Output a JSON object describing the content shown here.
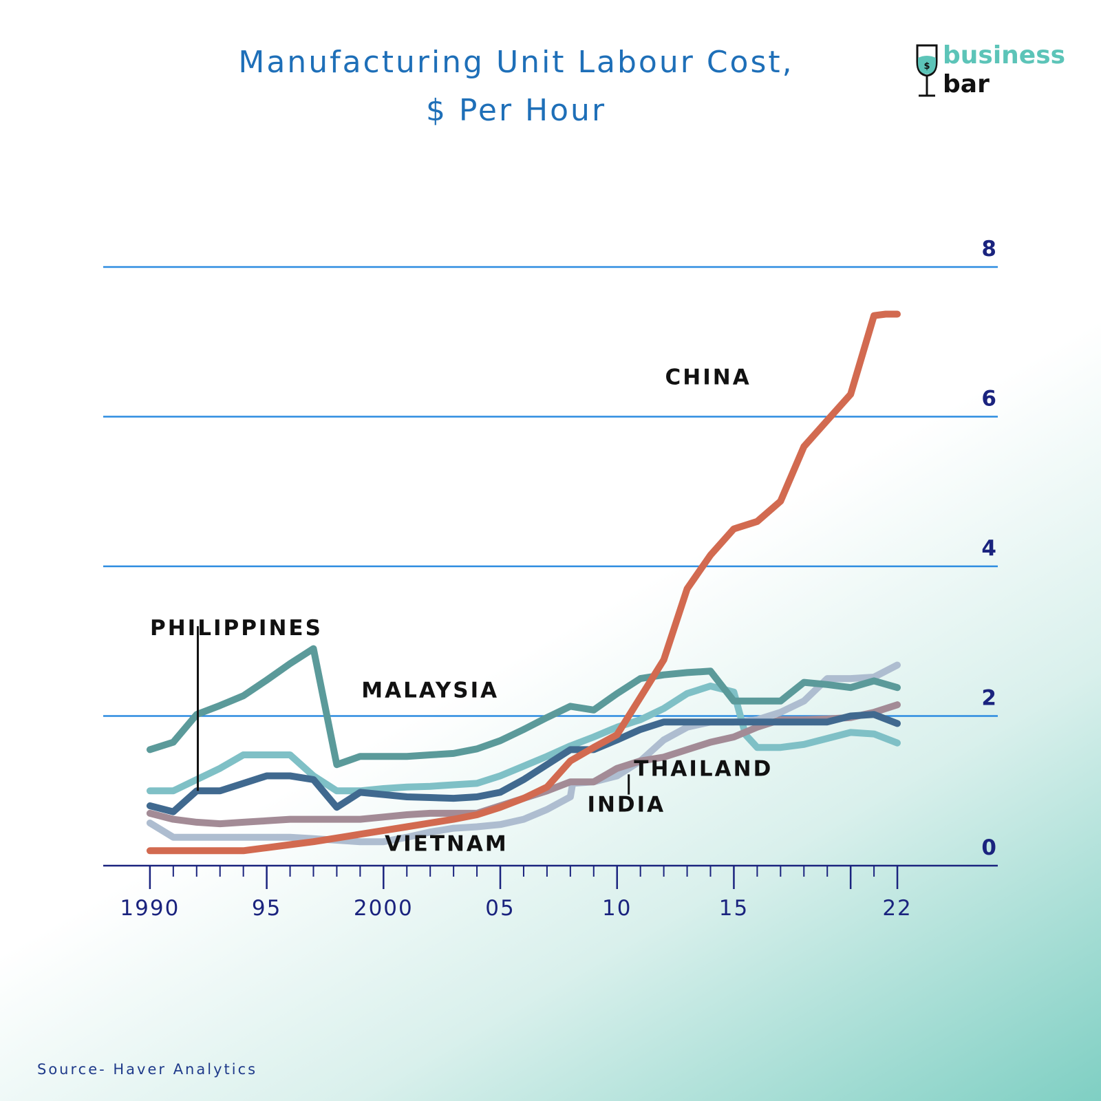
{
  "title": {
    "line1": "Manufacturing Unit Labour Cost,",
    "line2": "$ Per Hour"
  },
  "logo": {
    "top_text": "business",
    "bottom_text": "bar",
    "glass_symbol": "$",
    "icon": "wine-glass-icon"
  },
  "source": "Source- Haver Analytics",
  "colors": {
    "gridline": "#2b8be0",
    "axis": "#1a237e",
    "title": "#1e6fb8",
    "logo_accent": "#5cc4b8"
  },
  "chart_data": {
    "type": "line",
    "title": "Manufacturing Unit Labour Cost, $ Per Hour",
    "xlabel": "",
    "ylabel": "",
    "xlim": [
      1988,
      2026.3
    ],
    "ylim": [
      0,
      8
    ],
    "grid": "horizontal",
    "yticks": [
      {
        "value": 0,
        "label": "0"
      },
      {
        "value": 2,
        "label": "2"
      },
      {
        "value": 4,
        "label": "4"
      },
      {
        "value": 6,
        "label": "6"
      },
      {
        "value": 8,
        "label": "8"
      }
    ],
    "xticks": [
      {
        "value": 1990,
        "label": "1990"
      },
      {
        "value": 1995,
        "label": "95"
      },
      {
        "value": 2000,
        "label": "2000"
      },
      {
        "value": 2005,
        "label": "05"
      },
      {
        "value": 2010,
        "label": "10"
      },
      {
        "value": 2015,
        "label": "15"
      },
      {
        "value": 2022,
        "label": "22"
      }
    ],
    "minor_ticks_years": [
      1991,
      1992,
      1993,
      1994,
      1996,
      1997,
      1998,
      1999,
      2001,
      2002,
      2003,
      2004,
      2006,
      2007,
      2008,
      2009,
      2011,
      2012,
      2013,
      2014,
      2016,
      2017,
      2018,
      2019,
      2020,
      2021
    ],
    "major_ticks_years": [
      1990,
      1995,
      2000,
      2005,
      2010,
      2015,
      2020,
      2022
    ],
    "series": [
      {
        "name": "CHINA",
        "color": "#d26a50",
        "label_pos": {
          "x": 2013.9,
          "y": 6.43
        },
        "points": [
          [
            1990,
            0.2
          ],
          [
            1991,
            0.2
          ],
          [
            1992,
            0.2
          ],
          [
            1993,
            0.2
          ],
          [
            1994,
            0.2
          ],
          [
            1995,
            0.24
          ],
          [
            1996,
            0.28
          ],
          [
            1997,
            0.32
          ],
          [
            1998,
            0.37
          ],
          [
            1999,
            0.42
          ],
          [
            2000,
            0.47
          ],
          [
            2001,
            0.52
          ],
          [
            2002,
            0.57
          ],
          [
            2003,
            0.62
          ],
          [
            2004,
            0.68
          ],
          [
            2005,
            0.78
          ],
          [
            2006,
            0.9
          ],
          [
            2007,
            1.05
          ],
          [
            2008,
            1.4
          ],
          [
            2009,
            1.58
          ],
          [
            2010,
            1.75
          ],
          [
            2011,
            2.25
          ],
          [
            2012,
            2.75
          ],
          [
            2013,
            3.7
          ],
          [
            2014,
            4.15
          ],
          [
            2015,
            4.5
          ],
          [
            2016,
            4.6
          ],
          [
            2017,
            4.87
          ],
          [
            2018,
            5.6
          ],
          [
            2019,
            5.95
          ],
          [
            2020,
            6.3
          ],
          [
            2021,
            7.35
          ],
          [
            2021.5,
            7.37
          ],
          [
            2022,
            7.37
          ]
        ]
      },
      {
        "name": "MALAYSIA",
        "color": "#5b9a9a",
        "label_pos": {
          "x": 2002,
          "y": 2.25
        },
        "points": [
          [
            1990,
            1.55
          ],
          [
            1991,
            1.65
          ],
          [
            1992,
            2.02
          ],
          [
            1993,
            2.14
          ],
          [
            1994,
            2.27
          ],
          [
            1995,
            2.48
          ],
          [
            1996,
            2.7
          ],
          [
            1997,
            2.9
          ],
          [
            1998,
            1.35
          ],
          [
            1999,
            1.46
          ],
          [
            2000,
            1.46
          ],
          [
            2001,
            1.46
          ],
          [
            2002,
            1.48
          ],
          [
            2003,
            1.5
          ],
          [
            2004,
            1.56
          ],
          [
            2005,
            1.67
          ],
          [
            2006,
            1.82
          ],
          [
            2007,
            1.98
          ],
          [
            2008,
            2.13
          ],
          [
            2009,
            2.08
          ],
          [
            2010,
            2.3
          ],
          [
            2011,
            2.5
          ],
          [
            2012,
            2.55
          ],
          [
            2013,
            2.58
          ],
          [
            2014,
            2.6
          ],
          [
            2015,
            2.2
          ],
          [
            2016,
            2.2
          ],
          [
            2017,
            2.2
          ],
          [
            2018,
            2.45
          ],
          [
            2019,
            2.42
          ],
          [
            2020,
            2.38
          ],
          [
            2021,
            2.47
          ],
          [
            2022,
            2.38
          ]
        ]
      },
      {
        "name": "PHILIPPINES",
        "color": "#40698f",
        "label_pos": {
          "x": 1993.7,
          "y": 3.08
        },
        "leader": {
          "x": 1992.05,
          "y_top": 3.2,
          "y_bottom": 1.0
        },
        "points": [
          [
            1990,
            0.8
          ],
          [
            1991,
            0.72
          ],
          [
            1992,
            1.0
          ],
          [
            1993,
            1.0
          ],
          [
            1994,
            1.1
          ],
          [
            1995,
            1.2
          ],
          [
            1996,
            1.2
          ],
          [
            1997,
            1.15
          ],
          [
            1998,
            0.78
          ],
          [
            1999,
            0.98
          ],
          [
            2000,
            0.95
          ],
          [
            2001,
            0.92
          ],
          [
            2002,
            0.91
          ],
          [
            2003,
            0.9
          ],
          [
            2004,
            0.92
          ],
          [
            2005,
            0.98
          ],
          [
            2006,
            1.15
          ],
          [
            2007,
            1.35
          ],
          [
            2008,
            1.55
          ],
          [
            2009,
            1.55
          ],
          [
            2010,
            1.68
          ],
          [
            2011,
            1.82
          ],
          [
            2012,
            1.92
          ],
          [
            2013,
            1.92
          ],
          [
            2014,
            1.92
          ],
          [
            2015,
            1.92
          ],
          [
            2016,
            1.92
          ],
          [
            2017,
            1.92
          ],
          [
            2018,
            1.92
          ],
          [
            2019,
            1.92
          ],
          [
            2020,
            2.0
          ],
          [
            2021,
            2.02
          ],
          [
            2022,
            1.9
          ]
        ]
      },
      {
        "name": "THAILAND",
        "color": "#7fc0c6",
        "label_pos": {
          "x": 2013.7,
          "y": 1.2
        },
        "points": [
          [
            1990,
            1.0
          ],
          [
            1991,
            1.0
          ],
          [
            1992,
            1.15
          ],
          [
            1993,
            1.3
          ],
          [
            1994,
            1.48
          ],
          [
            1995,
            1.48
          ],
          [
            1996,
            1.48
          ],
          [
            1997,
            1.2
          ],
          [
            1998,
            1.0
          ],
          [
            1999,
            1.0
          ],
          [
            2000,
            1.03
          ],
          [
            2001,
            1.05
          ],
          [
            2002,
            1.06
          ],
          [
            2003,
            1.08
          ],
          [
            2004,
            1.1
          ],
          [
            2005,
            1.2
          ],
          [
            2006,
            1.33
          ],
          [
            2007,
            1.46
          ],
          [
            2008,
            1.6
          ],
          [
            2009,
            1.72
          ],
          [
            2010,
            1.85
          ],
          [
            2011,
            1.95
          ],
          [
            2012,
            2.1
          ],
          [
            2013,
            2.3
          ],
          [
            2014,
            2.4
          ],
          [
            2015,
            2.32
          ],
          [
            2015.5,
            1.75
          ],
          [
            2016,
            1.58
          ],
          [
            2017,
            1.58
          ],
          [
            2018,
            1.62
          ],
          [
            2019,
            1.7
          ],
          [
            2020,
            1.78
          ],
          [
            2021,
            1.76
          ],
          [
            2022,
            1.64
          ]
        ]
      },
      {
        "name": "INDIA",
        "color": "#a38b96",
        "label_pos": {
          "x": 2010.4,
          "y": 0.72
        },
        "leader": {
          "x": 2010.5,
          "y_top": 1.22,
          "y_bottom": 0.95
        },
        "points": [
          [
            1990,
            0.7
          ],
          [
            1991,
            0.62
          ],
          [
            1992,
            0.58
          ],
          [
            1993,
            0.56
          ],
          [
            1994,
            0.58
          ],
          [
            1995,
            0.6
          ],
          [
            1996,
            0.62
          ],
          [
            1997,
            0.62
          ],
          [
            1998,
            0.62
          ],
          [
            1999,
            0.62
          ],
          [
            2000,
            0.65
          ],
          [
            2001,
            0.68
          ],
          [
            2002,
            0.7
          ],
          [
            2003,
            0.7
          ],
          [
            2004,
            0.7
          ],
          [
            2005,
            0.8
          ],
          [
            2006,
            0.9
          ],
          [
            2007,
            1.0
          ],
          [
            2008,
            1.12
          ],
          [
            2009,
            1.12
          ],
          [
            2010,
            1.3
          ],
          [
            2011,
            1.4
          ],
          [
            2012,
            1.45
          ],
          [
            2013,
            1.55
          ],
          [
            2014,
            1.65
          ],
          [
            2015,
            1.72
          ],
          [
            2016,
            1.85
          ],
          [
            2017,
            1.95
          ],
          [
            2018,
            1.95
          ],
          [
            2019,
            1.96
          ],
          [
            2020,
            1.98
          ],
          [
            2021,
            2.05
          ],
          [
            2022,
            2.15
          ]
        ]
      },
      {
        "name": "VIETNAM",
        "color": "#aebdd0",
        "label_pos": {
          "x": 2002.7,
          "y": 0.2
        },
        "points": [
          [
            1990,
            0.57
          ],
          [
            1991,
            0.38
          ],
          [
            1992,
            0.38
          ],
          [
            1993,
            0.38
          ],
          [
            1994,
            0.38
          ],
          [
            1995,
            0.38
          ],
          [
            1996,
            0.38
          ],
          [
            1997,
            0.36
          ],
          [
            1998,
            0.34
          ],
          [
            1999,
            0.32
          ],
          [
            2000,
            0.32
          ],
          [
            2001,
            0.38
          ],
          [
            2002,
            0.45
          ],
          [
            2003,
            0.5
          ],
          [
            2004,
            0.52
          ],
          [
            2005,
            0.55
          ],
          [
            2006,
            0.62
          ],
          [
            2007,
            0.75
          ],
          [
            2008,
            0.92
          ],
          [
            2008.1,
            1.1
          ],
          [
            2009,
            1.12
          ],
          [
            2010,
            1.2
          ],
          [
            2011,
            1.4
          ],
          [
            2012,
            1.68
          ],
          [
            2013,
            1.85
          ],
          [
            2014,
            1.92
          ],
          [
            2015,
            1.92
          ],
          [
            2016,
            1.95
          ],
          [
            2017,
            2.05
          ],
          [
            2018,
            2.2
          ],
          [
            2019,
            2.5
          ],
          [
            2020,
            2.5
          ],
          [
            2021,
            2.52
          ],
          [
            2022,
            2.68
          ]
        ]
      }
    ]
  }
}
